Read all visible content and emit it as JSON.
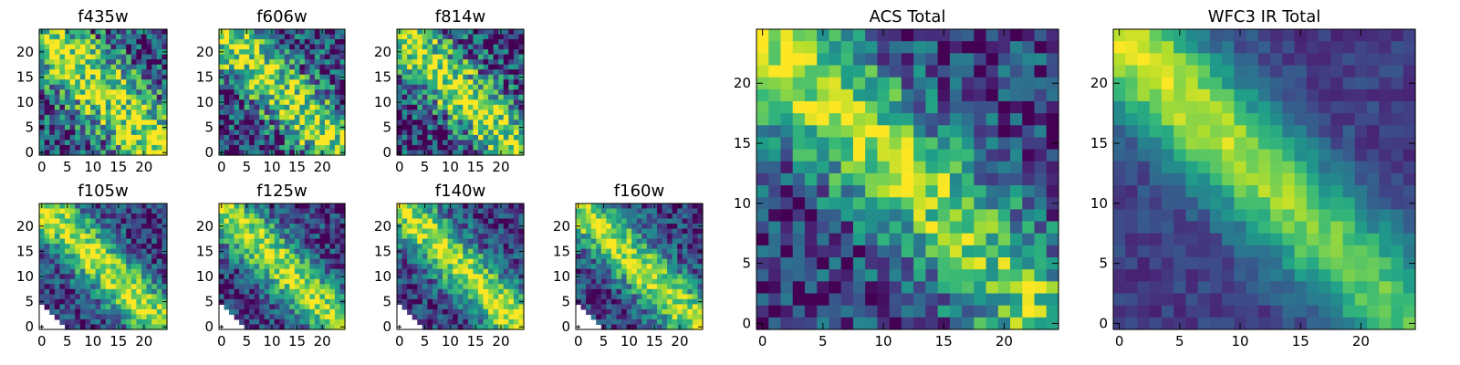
{
  "figure": {
    "colormap": "viridis",
    "background": "#ffffff"
  },
  "chart_data": [
    {
      "type": "heatmap",
      "title": "f435w",
      "x_ticks": [
        0,
        5,
        10,
        15,
        20
      ],
      "y_ticks": [
        0,
        5,
        10,
        15,
        20
      ],
      "xlim": [
        0,
        24
      ],
      "ylim": [
        0,
        24
      ],
      "grid": false,
      "masked_corner": false,
      "pattern": "noisy diagonal band from top-left to bottom-right"
    },
    {
      "type": "heatmap",
      "title": "f606w",
      "x_ticks": [
        0,
        5,
        10,
        15,
        20
      ],
      "y_ticks": [
        0,
        5,
        10,
        15,
        20
      ],
      "xlim": [
        0,
        24
      ],
      "ylim": [
        0,
        24
      ],
      "grid": false,
      "masked_corner": false,
      "pattern": "noisy diagonal band from top-left to bottom-right"
    },
    {
      "type": "heatmap",
      "title": "f814w",
      "x_ticks": [
        0,
        5,
        10,
        15,
        20
      ],
      "y_ticks": [
        0,
        5,
        10,
        15,
        20
      ],
      "xlim": [
        0,
        24
      ],
      "ylim": [
        0,
        24
      ],
      "grid": false,
      "masked_corner": false,
      "pattern": "noisy diagonal band from top-left to bottom-right"
    },
    {
      "type": "heatmap",
      "title": "f105w",
      "x_ticks": [
        0,
        5,
        10,
        15,
        20
      ],
      "y_ticks": [
        0,
        5,
        10,
        15,
        20
      ],
      "xlim": [
        0,
        24
      ],
      "ylim": [
        0,
        24
      ],
      "grid": false,
      "masked_corner": true,
      "pattern": "diagonal band, bottom-left corner masked"
    },
    {
      "type": "heatmap",
      "title": "f125w",
      "x_ticks": [
        0,
        5,
        10,
        15,
        20
      ],
      "y_ticks": [
        0,
        5,
        10,
        15,
        20
      ],
      "xlim": [
        0,
        24
      ],
      "ylim": [
        0,
        24
      ],
      "grid": false,
      "masked_corner": true,
      "pattern": "diagonal band, bottom-left corner masked"
    },
    {
      "type": "heatmap",
      "title": "f140w",
      "x_ticks": [
        0,
        5,
        10,
        15,
        20
      ],
      "y_ticks": [
        0,
        5,
        10,
        15,
        20
      ],
      "xlim": [
        0,
        24
      ],
      "ylim": [
        0,
        24
      ],
      "grid": false,
      "masked_corner": true,
      "pattern": "diagonal band, bottom-left corner masked"
    },
    {
      "type": "heatmap",
      "title": "f160w",
      "x_ticks": [
        0,
        5,
        10,
        15,
        20
      ],
      "y_ticks": [
        0,
        5,
        10,
        15,
        20
      ],
      "xlim": [
        0,
        24
      ],
      "ylim": [
        0,
        24
      ],
      "grid": false,
      "masked_corner": true,
      "pattern": "diagonal band, bottom-left corner masked"
    },
    {
      "type": "heatmap",
      "title": "ACS Total",
      "x_ticks": [
        0,
        5,
        10,
        15,
        20
      ],
      "y_ticks": [
        0,
        5,
        10,
        15,
        20
      ],
      "xlim": [
        0,
        24
      ],
      "ylim": [
        0,
        24
      ],
      "grid": false,
      "masked_corner": false,
      "pattern": "diagonal band, brightest near upper left"
    },
    {
      "type": "heatmap",
      "title": "WFC3 IR Total",
      "x_ticks": [
        0,
        5,
        10,
        15,
        20
      ],
      "y_ticks": [
        0,
        5,
        10,
        15,
        20
      ],
      "xlim": [
        0,
        24
      ],
      "ylim": [
        0,
        24
      ],
      "grid": false,
      "masked_corner": false,
      "pattern": "smooth diagonal band, brightest near upper left"
    }
  ]
}
